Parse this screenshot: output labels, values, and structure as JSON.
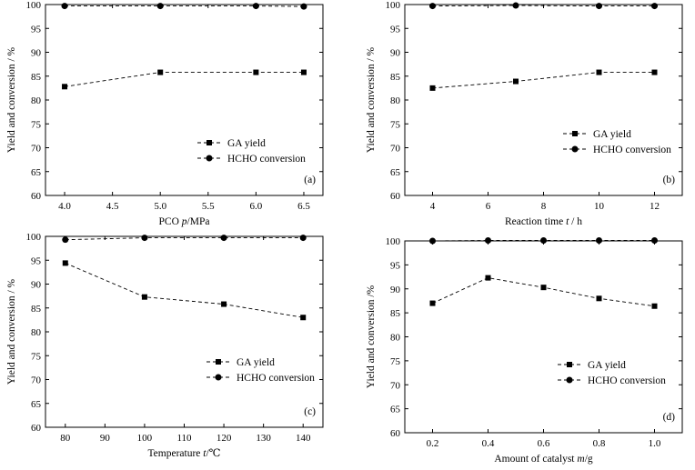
{
  "chart_data": [
    {
      "type": "line",
      "panel_label": "(a)",
      "xlabel_main": "PCO",
      "xlabel_var": "p",
      "xlabel_unit": "/MPa",
      "ylabel": "Yield and conversion / %",
      "xlim": [
        3.8,
        6.7
      ],
      "ylim": [
        60,
        100
      ],
      "xticks": [
        4.0,
        4.5,
        5.0,
        5.5,
        6.0,
        6.5
      ],
      "xtick_labels": [
        "4.0",
        "4.5",
        "5.0",
        "5.5",
        "6.0",
        "6.5"
      ],
      "yticks": [
        60,
        65,
        70,
        75,
        80,
        85,
        90,
        95,
        100
      ],
      "ytick_labels": [
        "60",
        "65",
        "70",
        "75",
        "80",
        "85",
        "90",
        "95",
        "100"
      ],
      "legend_position": "lower-right",
      "series": [
        {
          "name": "GA yield",
          "marker": "square",
          "x": [
            4.0,
            5.0,
            6.0,
            6.5
          ],
          "y": [
            82.8,
            85.8,
            85.8,
            85.8
          ]
        },
        {
          "name": "HCHO conversion",
          "marker": "circle",
          "x": [
            4.0,
            5.0,
            6.0,
            6.5
          ],
          "y": [
            99.7,
            99.7,
            99.7,
            99.6
          ]
        }
      ]
    },
    {
      "type": "line",
      "panel_label": "(b)",
      "xlabel_main": "Reaction time",
      "xlabel_var": "t",
      "xlabel_unit": " / h",
      "ylabel": "Yield and conversion / %",
      "xlim": [
        3,
        13
      ],
      "ylim": [
        60,
        100
      ],
      "xticks": [
        4,
        6,
        8,
        10,
        12
      ],
      "xtick_labels": [
        "4",
        "6",
        "8",
        "10",
        "12"
      ],
      "yticks": [
        60,
        65,
        70,
        75,
        80,
        85,
        90,
        95,
        100
      ],
      "ytick_labels": [
        "60",
        "65",
        "70",
        "75",
        "80",
        "85",
        "90",
        "95",
        "100"
      ],
      "legend_position": "lower-right",
      "series": [
        {
          "name": "GA yield",
          "marker": "square",
          "x": [
            4,
            7,
            10,
            12
          ],
          "y": [
            82.5,
            83.9,
            85.8,
            85.8
          ]
        },
        {
          "name": "HCHO conversion",
          "marker": "circle",
          "x": [
            4,
            7,
            10,
            12
          ],
          "y": [
            99.7,
            99.8,
            99.7,
            99.7
          ]
        }
      ]
    },
    {
      "type": "line",
      "panel_label": "(c)",
      "xlabel_main": "Temperature",
      "xlabel_var": "t",
      "xlabel_unit": "/℃",
      "ylabel": "Yield and conversion  / %",
      "xlim": [
        75,
        145
      ],
      "ylim": [
        60,
        100
      ],
      "xticks": [
        80,
        90,
        100,
        110,
        120,
        130,
        140
      ],
      "xtick_labels": [
        "80",
        "90",
        "100",
        "110",
        "120",
        "130",
        "140"
      ],
      "yticks": [
        60,
        65,
        70,
        75,
        80,
        85,
        90,
        95,
        100
      ],
      "ytick_labels": [
        "60",
        "65",
        "70",
        "75",
        "80",
        "85",
        "90",
        "95",
        "100"
      ],
      "legend_position": "lower-right",
      "series": [
        {
          "name": "GA yield",
          "marker": "square",
          "x": [
            80,
            100,
            120,
            140
          ],
          "y": [
            94.4,
            87.3,
            85.8,
            83.0
          ]
        },
        {
          "name": "HCHO conversion",
          "marker": "circle",
          "x": [
            80,
            100,
            120,
            140
          ],
          "y": [
            99.3,
            99.7,
            99.7,
            99.7
          ]
        }
      ]
    },
    {
      "type": "line",
      "panel_label": "(d)",
      "xlabel_main": "Amount of catalyst",
      "xlabel_var": "m",
      "xlabel_unit": "/g",
      "ylabel": "Yield and conversion /%",
      "xlim": [
        0.1,
        1.1
      ],
      "ylim": [
        60,
        100
      ],
      "xticks": [
        0.2,
        0.4,
        0.6,
        0.8,
        1.0
      ],
      "xtick_labels": [
        "0.2",
        "0.4",
        "0.6",
        "0.8",
        "1.0"
      ],
      "yticks": [
        60,
        65,
        70,
        75,
        80,
        85,
        90,
        95,
        100
      ],
      "ytick_labels": [
        "60",
        "65",
        "70",
        "75",
        "80",
        "85",
        "90",
        "95",
        "100"
      ],
      "legend_position": "lower-right",
      "series": [
        {
          "name": "GA yield",
          "marker": "square",
          "x": [
            0.2,
            0.4,
            0.6,
            0.8,
            1.0
          ],
          "y": [
            87.0,
            92.3,
            90.3,
            88.0,
            86.4
          ]
        },
        {
          "name": "HCHO conversion",
          "marker": "circle",
          "x": [
            0.2,
            0.4,
            0.6,
            0.8,
            1.0
          ],
          "y": [
            100.0,
            100.1,
            100.1,
            100.1,
            100.1
          ]
        }
      ]
    }
  ]
}
